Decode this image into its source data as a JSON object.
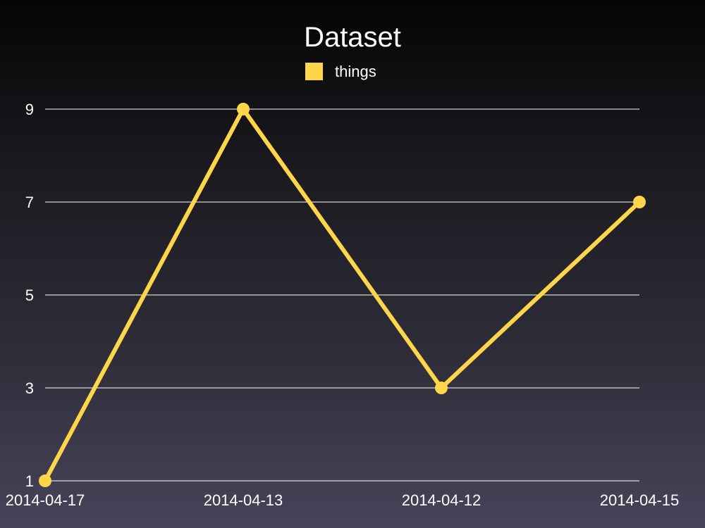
{
  "chart_data": {
    "type": "line",
    "title": "Dataset",
    "categories": [
      "2014-04-17",
      "2014-04-13",
      "2014-04-12",
      "2014-04-15"
    ],
    "series": [
      {
        "name": "things",
        "values": [
          1,
          9,
          3,
          7
        ],
        "color": "#ffd54a"
      }
    ],
    "yticks": [
      "1",
      "3",
      "5",
      "7",
      "9"
    ],
    "ylim": [
      1,
      9
    ],
    "grid": true,
    "legend_position": "top-center",
    "colors": {
      "text": "#ffffff",
      "grid": "#ffffff"
    }
  }
}
